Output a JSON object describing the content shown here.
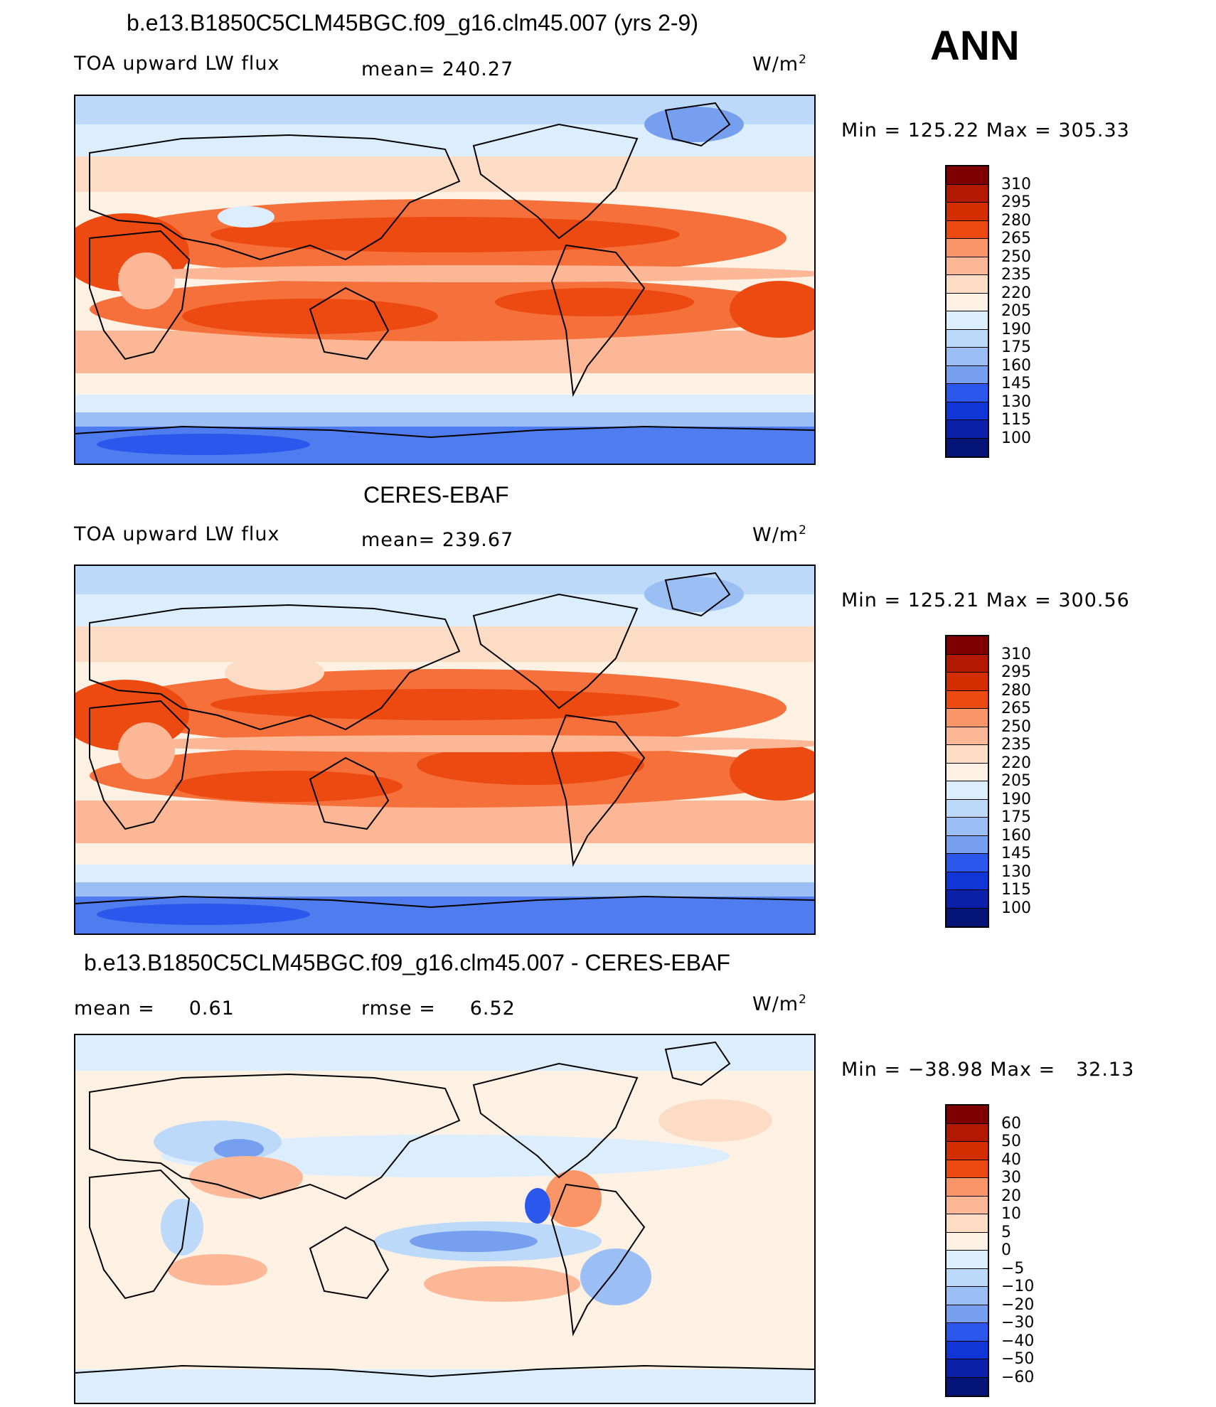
{
  "season": "ANN",
  "colors": {
    "warm": [
      "#7f0000",
      "#b31800",
      "#d42d00",
      "#ed4a12",
      "#f5703a",
      "#f99566",
      "#fcb896",
      "#fddcc5",
      "#fdf1e4"
    ],
    "cool": [
      "#dceefe",
      "#bdd9fa",
      "#9bbff5",
      "#779ff0",
      "#4f7def",
      "#2c57ec",
      "#1136d8",
      "#0b20a8",
      "#041577"
    ]
  },
  "chart_data": [
    {
      "type": "heatmap",
      "title": "b.e13.B1850C5CLM45BGC.f09_g16.clm45.007 (yrs 2-9)",
      "variable": "TOA upward LW flux",
      "mean_label": "mean= 240.27",
      "mean": 240.27,
      "units": "W/m",
      "units_sup": "2",
      "minmax_label": "Min = 125.22 Max = 305.33",
      "min": 125.22,
      "max": 305.33,
      "colorbar_levels": [
        "310",
        "295",
        "280",
        "265",
        "250",
        "235",
        "220",
        "205",
        "190",
        "175",
        "160",
        "145",
        "130",
        "115",
        "100"
      ]
    },
    {
      "type": "heatmap",
      "title": "CERES-EBAF",
      "variable": "TOA upward LW flux",
      "mean_label": "mean= 239.67",
      "mean": 239.67,
      "units": "W/m",
      "units_sup": "2",
      "minmax_label": "Min = 125.21 Max = 300.56",
      "min": 125.21,
      "max": 300.56,
      "colorbar_levels": [
        "310",
        "295",
        "280",
        "265",
        "250",
        "235",
        "220",
        "205",
        "190",
        "175",
        "160",
        "145",
        "130",
        "115",
        "100"
      ]
    },
    {
      "type": "heatmap",
      "title": "b.e13.B1850C5CLM45BGC.f09_g16.clm45.007 - CERES-EBAF",
      "mean_label": "mean =     0.61",
      "mean": 0.61,
      "rmse_label": "rmse =     6.52",
      "rmse": 6.52,
      "units": "W/m",
      "units_sup": "2",
      "minmax_label": "Min = −38.98 Max =   32.13",
      "min": -38.98,
      "max": 32.13,
      "colorbar_levels": [
        "60",
        "50",
        "40",
        "30",
        "20",
        "10",
        "5",
        "0",
        "−5",
        "−10",
        "−20",
        "−30",
        "−40",
        "−50",
        "−60"
      ]
    }
  ]
}
